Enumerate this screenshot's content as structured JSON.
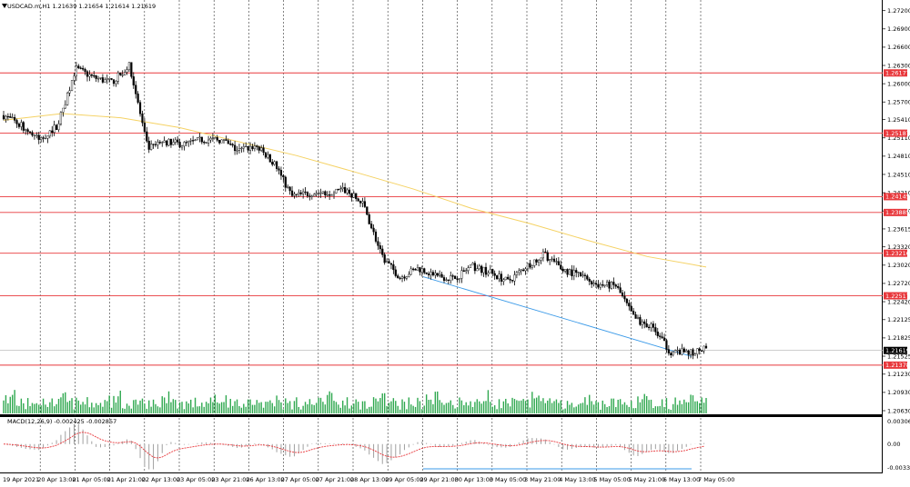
{
  "chart": {
    "symbol": "USDCAD.m,H1",
    "ohlc": "1.21639 1.21654 1.21614 1.21619",
    "indicator_label": "MACD(12,26,9) -0.002425 -0.002857"
  },
  "chart_data": {
    "type": "candlestick",
    "price_axis_labels": [
      "1.27200",
      "1.26900",
      "1.26600",
      "1.26300",
      "1.26000",
      "1.25700",
      "1.25410",
      "1.25110",
      "1.24810",
      "1.24510",
      "1.24210",
      "1.23910",
      "1.23615",
      "1.23320",
      "1.23020",
      "1.22720",
      "1.22420",
      "1.22125",
      "1.21825",
      "1.21525",
      "1.21230",
      "1.20930",
      "1.20630"
    ],
    "ylim": [
      1.2063,
      1.273
    ],
    "horizontal_levels": [
      "1.26177",
      "1.25187",
      "1.24145",
      "1.23885",
      "1.23216",
      "1.22517",
      "1.21378"
    ],
    "current_price": "1.21619",
    "time_labels": [
      "19 Apr 2021",
      "20 Apr 13:00",
      "21 Apr 05:00",
      "21 Apr 21:00",
      "22 Apr 13:00",
      "23 Apr 05:00",
      "23 Apr 21:00",
      "26 Apr 13:00",
      "27 Apr 05:00",
      "27 Apr 21:00",
      "28 Apr 13:00",
      "29 Apr 05:00",
      "29 Apr 21:00",
      "30 Apr 13:00",
      "3 May 05:00",
      "3 May 21:00",
      "4 May 13:00",
      "5 May 05:00",
      "5 May 21:00",
      "6 May 13:00",
      "7 May 05:00"
    ],
    "price_path": [
      1.2548,
      1.2531,
      1.2507,
      1.2532,
      1.2625,
      1.261,
      1.2602,
      1.263,
      1.2493,
      1.2505,
      1.25,
      1.2508,
      1.2508,
      1.249,
      1.2498,
      1.247,
      1.2415,
      1.242,
      1.2422,
      1.2425,
      1.24,
      1.2315,
      1.2282,
      1.2297,
      1.2285,
      1.228,
      1.23,
      1.229,
      1.2275,
      1.23,
      1.232,
      1.2295,
      1.2285,
      1.227,
      1.2268,
      1.2215,
      1.22,
      1.216,
      1.2158,
      1.2164
    ],
    "ma_path": [
      1.254,
      1.2551,
      1.2544,
      1.2528,
      1.2505,
      1.2482,
      1.2455,
      1.2427,
      1.2395,
      1.237,
      1.2342,
      1.2316,
      1.2299
    ],
    "trendline": [
      1.2283,
      1.2152
    ],
    "macd_axis_labels": [
      "0.00306",
      "0.00",
      "-0.003344"
    ],
    "macd_range": [
      -0.003344,
      0.00306
    ]
  },
  "colors": {
    "candle": "#000000",
    "level_line": "#e8383c",
    "level_label_bg": "#e8383c",
    "ma_line": "#f5d264",
    "trendline": "#3b9ae8",
    "volume": "#2fa84f",
    "macd_hist": "#a0a0a0",
    "macd_signal": "#e8383c",
    "grid": "#333333"
  }
}
